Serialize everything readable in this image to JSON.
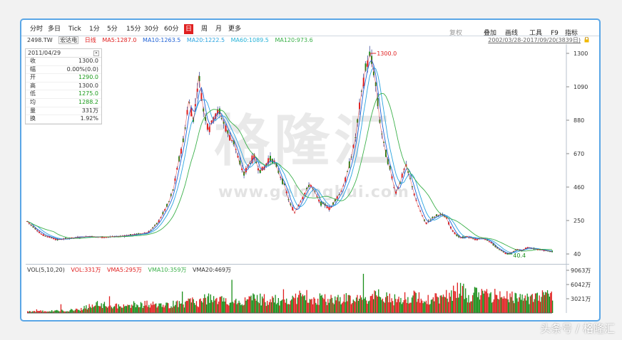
{
  "toolbar": {
    "tabs": [
      "分时",
      "多日",
      "Tick",
      "1分",
      "5分",
      "15分",
      "30分",
      "60分",
      "日",
      "周",
      "月",
      "更多"
    ],
    "active_tab": "日",
    "right_tools": [
      "复权",
      "叠加",
      "画线",
      "工具",
      "F9",
      "指标"
    ]
  },
  "header": {
    "symbol": "2498.TW",
    "name": "宏达电",
    "period": "日线",
    "ma5": "MA5:1287.0",
    "ma10": "MA10:1263.5",
    "ma20": "MA20:1222.5",
    "ma60": "MA60:1089.5",
    "ma120": "MA120:973.6",
    "range": "2002/03/28-2017/09/20(3839日)"
  },
  "info_panel": {
    "date": "2011/04/29",
    "rows": [
      {
        "k": "收",
        "v": "1300.0",
        "color": "#333333"
      },
      {
        "k": "幅",
        "v": "0.00%(0.0)",
        "color": "#333333"
      },
      {
        "k": "开",
        "v": "1290.0",
        "color": "#1a9a1a"
      },
      {
        "k": "高",
        "v": "1300.0",
        "color": "#333333"
      },
      {
        "k": "低",
        "v": "1275.0",
        "color": "#1a9a1a"
      },
      {
        "k": "均",
        "v": "1288.2",
        "color": "#1a9a1a"
      },
      {
        "k": "量",
        "v": "331万",
        "color": "#333333"
      },
      {
        "k": "换",
        "v": "1.92%",
        "color": "#333333"
      }
    ]
  },
  "annotations": {
    "high": "1300.0",
    "low": "40.4"
  },
  "watermark": {
    "brand": "格隆汇",
    "url": "www.gelonghui.com"
  },
  "volume": {
    "legend_params": "VOL(5,10,20)",
    "vol": "VOL:331万",
    "vma5": "VMA5:295万",
    "vma10": "VMA10:359万",
    "vma20": "VMA20:469万"
  },
  "credit": "头条号 / 格隆汇",
  "colors": {
    "up": "#e02020",
    "down": "#1a8f1a",
    "ma5": "#e02020",
    "ma10": "#1f62d6",
    "ma20": "#2aa4e0",
    "ma60": "#27b3d8",
    "ma120": "#3bb04a",
    "accent": "#5aa6e6",
    "wick": "#2a3b8f"
  },
  "chart_data": [
    {
      "type": "line",
      "title": "2498.TW 宏达电 日线",
      "y_ticks": [
        40,
        250,
        460,
        670,
        880,
        1090,
        1300
      ],
      "ylim": [
        0,
        1340
      ],
      "x_range": [
        "2002/03/28",
        "2017/09/20"
      ],
      "series": [
        {
          "name": "价格",
          "points": [
            [
              0,
              245
            ],
            [
              3,
              160
            ],
            [
              6,
              130
            ],
            [
              9,
              140
            ],
            [
              12,
              150
            ],
            [
              15,
              145
            ],
            [
              18,
              150
            ],
            [
              21,
              160
            ],
            [
              24,
              175
            ],
            [
              26,
              240
            ],
            [
              28,
              360
            ],
            [
              29,
              450
            ],
            [
              30,
              620
            ],
            [
              31,
              760
            ],
            [
              32,
              1000
            ],
            [
              33,
              880
            ],
            [
              34,
              1160
            ],
            [
              35,
              930
            ],
            [
              36,
              820
            ],
            [
              37,
              900
            ],
            [
              38,
              940
            ],
            [
              39,
              860
            ],
            [
              40,
              780
            ],
            [
              41,
              740
            ],
            [
              42,
              620
            ],
            [
              43,
              540
            ],
            [
              44,
              610
            ],
            [
              45,
              650
            ],
            [
              46,
              560
            ],
            [
              47,
              580
            ],
            [
              48,
              640
            ],
            [
              49,
              620
            ],
            [
              50,
              540
            ],
            [
              51,
              470
            ],
            [
              52,
              360
            ],
            [
              53,
              300
            ],
            [
              54,
              360
            ],
            [
              55,
              420
            ],
            [
              56,
              480
            ],
            [
              57,
              430
            ],
            [
              58,
              360
            ],
            [
              59,
              350
            ],
            [
              60,
              320
            ],
            [
              61,
              380
            ],
            [
              62,
              420
            ],
            [
              63,
              500
            ],
            [
              64,
              620
            ],
            [
              65,
              760
            ],
            [
              66,
              1000
            ],
            [
              67,
              1200
            ],
            [
              68,
              1300
            ],
            [
              69,
              1120
            ],
            [
              70,
              840
            ],
            [
              71,
              680
            ],
            [
              72,
              560
            ],
            [
              73,
              420
            ],
            [
              74,
              500
            ],
            [
              75,
              600
            ],
            [
              76,
              500
            ],
            [
              77,
              380
            ],
            [
              78,
              300
            ],
            [
              79,
              230
            ],
            [
              80,
              260
            ],
            [
              81,
              280
            ],
            [
              82,
              290
            ],
            [
              83,
              270
            ],
            [
              84,
              200
            ],
            [
              85,
              160
            ],
            [
              86,
              140
            ],
            [
              87,
              150
            ],
            [
              88,
              140
            ],
            [
              89,
              130
            ],
            [
              90,
              140
            ],
            [
              91,
              130
            ],
            [
              92,
              110
            ],
            [
              93,
              80
            ],
            [
              94,
              60
            ],
            [
              95,
              40
            ],
            [
              96,
              50
            ],
            [
              97,
              70
            ],
            [
              98,
              60
            ],
            [
              99,
              80
            ],
            [
              100,
              75
            ],
            [
              101,
              70
            ],
            [
              102,
              65
            ],
            [
              103,
              60
            ],
            [
              104,
              55
            ]
          ]
        }
      ]
    },
    {
      "type": "bar",
      "title": "VOL(5,10,20)",
      "y_ticks": [
        "3021万",
        "6042万",
        "9063万"
      ],
      "ylim": [
        0,
        9063
      ],
      "series": [
        {
          "name": "VOL",
          "values": [
            300,
            320,
            400,
            420,
            380,
            450,
            500,
            520,
            600,
            700,
            800,
            1200,
            1500,
            1800,
            1600,
            1700,
            1500,
            1400,
            1300,
            1500,
            1700,
            1600,
            1800,
            1900,
            1700,
            1600,
            1500,
            1800,
            2000,
            1900,
            2100,
            2400,
            2200,
            2600,
            3000,
            2800,
            2600,
            2500,
            2400,
            2300,
            2200,
            2600,
            2800,
            3200,
            2900,
            2700,
            2500,
            2400,
            2300,
            2600,
            3000,
            3200,
            3600,
            3400,
            3100,
            2900,
            2800,
            3000,
            3100,
            3300,
            3100,
            2900,
            2800,
            2700,
            3100,
            3400,
            3600,
            3200,
            3000,
            2800,
            2900,
            3100,
            3300,
            3500,
            3000,
            2900,
            2800,
            3100,
            3300,
            3600,
            4100,
            4800,
            4400,
            4000,
            3800,
            3900,
            4100,
            3900,
            3700,
            3500,
            3400,
            3600,
            3500,
            3400,
            3300,
            3200,
            3500,
            4000,
            3600,
            3400
          ]
        }
      ]
    }
  ]
}
